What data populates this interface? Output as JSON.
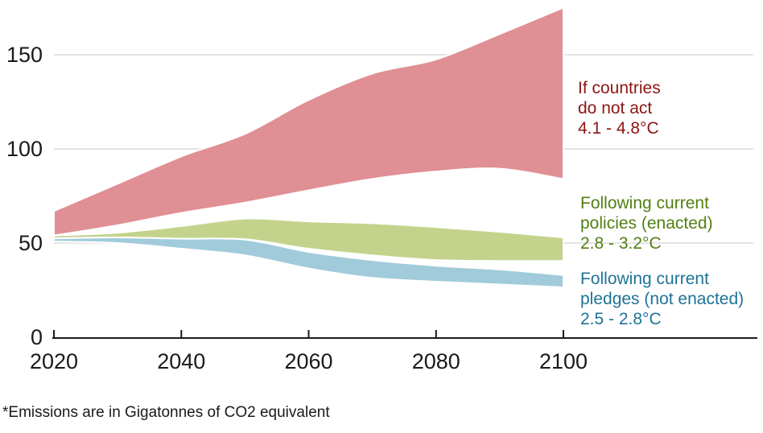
{
  "chart_data": {
    "type": "area",
    "title": "",
    "xlabel": "",
    "ylabel": "",
    "unit": "Gigatonnes of CO2 equivalent",
    "x": [
      2020,
      2030,
      2040,
      2050,
      2060,
      2070,
      2080,
      2090,
      2100
    ],
    "series": [
      {
        "key": "no_act",
        "name": "If countries do not act",
        "temperature_range": "4.1 - 4.8°C",
        "color_key": "no_act_band",
        "upper": [
          67,
          81.5,
          96,
          108,
          126,
          140,
          147.5,
          161,
          175
        ],
        "lower": [
          54,
          59.5,
          66,
          71.5,
          78,
          84,
          88,
          89.5,
          84
        ]
      },
      {
        "key": "policies",
        "name": "Following current policies (enacted)",
        "temperature_range": "2.8 - 3.2°C",
        "color_key": "policies_band",
        "upper": [
          54,
          55.5,
          59,
          63,
          61.5,
          60.5,
          58.5,
          56,
          53
        ],
        "lower": [
          52.5,
          53,
          52.3,
          52,
          47,
          43.5,
          41,
          40.5,
          40.5
        ]
      },
      {
        "key": "pledges",
        "name": "Following current pledges (not enacted)",
        "temperature_range": "2.5 - 2.8°C",
        "color_key": "pledges_band",
        "upper": [
          52.5,
          53,
          52.3,
          51.8,
          45.3,
          41,
          38,
          36,
          33
        ],
        "lower": [
          50.8,
          50,
          47,
          43.5,
          36.5,
          31.5,
          29.5,
          28,
          26.5
        ]
      }
    ],
    "x_ticks": [
      2020,
      2040,
      2060,
      2080,
      2100
    ],
    "y_ticks": [
      0,
      50,
      100,
      150
    ],
    "xlim": [
      2020,
      2100
    ],
    "ylim": [
      0,
      178
    ],
    "grid": "horizontal",
    "legend_position": "right"
  },
  "legend": {
    "no_act": {
      "lines": [
        "If countries",
        "do not act",
        "4.1 - 4.8°C"
      ]
    },
    "policies": {
      "lines": [
        "Following current",
        "policies (enacted)",
        "2.8 - 3.2°C"
      ]
    },
    "pledges": {
      "lines": [
        "Following current",
        "pledges (not enacted)",
        "2.5 - 2.8°C"
      ]
    }
  },
  "footnote": "*Emissions are in Gigatonnes of CO2 equivalent",
  "colors": {
    "no_act_band": "#E08F94",
    "no_act_text": "#8B1512",
    "policies_band": "#C3D38C",
    "policies_text": "#527F12",
    "pledges_band": "#A1CBDA",
    "pledges_text": "#1E7397",
    "axis_text": "#1A1A1A",
    "axis_line": "#1A1A1A",
    "gridline": "#DBDBDB",
    "separator": "#FFFFFF",
    "background": "#FFFFFF"
  }
}
